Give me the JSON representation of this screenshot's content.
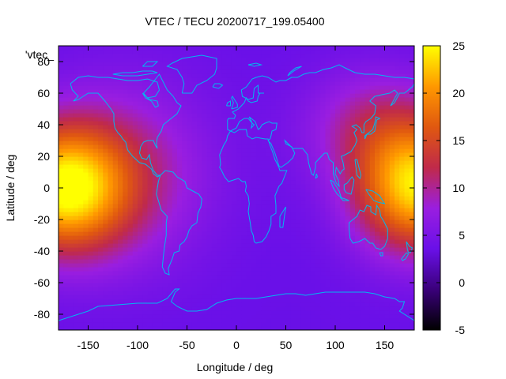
{
  "chart_data": {
    "type": "heatmap",
    "title": "VTEC / TECU 20200717_199.05400",
    "xlabel": "Longitude / deg",
    "ylabel": "Latitude / deg",
    "xlim": [
      -180,
      180
    ],
    "ylim": [
      -90,
      90
    ],
    "xticks": [
      -150,
      -100,
      -50,
      0,
      50,
      100,
      150
    ],
    "yticks": [
      -80,
      -60,
      -40,
      -20,
      0,
      20,
      40,
      60,
      80
    ],
    "legend_label": "'vtec_",
    "colorbar": {
      "range": [
        -5,
        25
      ],
      "ticks": [
        -5,
        0,
        5,
        10,
        15,
        20,
        25
      ],
      "colormap": [
        "#000000",
        "#3a007a",
        "#6a10e8",
        "#9a1ee0",
        "#c02a4a",
        "#e05810",
        "#ff9800",
        "#ffff00"
      ]
    },
    "field": {
      "background_tecu": 3.5,
      "blobs": [
        {
          "lon": -175,
          "lat": 0,
          "peak_tecu": 20,
          "sigma_lon": 45,
          "sigma_lat": 28
        },
        {
          "lon": 185,
          "lat": 0,
          "peak_tecu": 20,
          "sigma_lon": 45,
          "sigma_lat": 28
        },
        {
          "lon": -110,
          "lat": 10,
          "peak_tecu": 6,
          "sigma_lon": 60,
          "sigma_lat": 40
        },
        {
          "lon": 140,
          "lat": 40,
          "peak_tecu": 6,
          "sigma_lon": 50,
          "sigma_lat": 25
        }
      ]
    }
  }
}
